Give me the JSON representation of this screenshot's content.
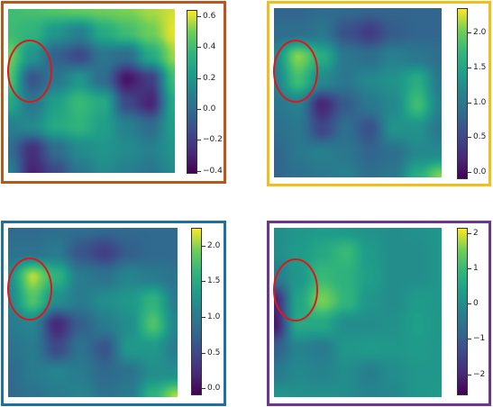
{
  "colors": {
    "panel_1_border": "#b8571d",
    "panel_2_border": "#f0bf1a",
    "panel_3_border": "#1f6fa0",
    "panel_4_border": "#6b3590",
    "circle": "#e0161b"
  },
  "chart_data": [
    {
      "type": "heatmap",
      "colormap": "viridis",
      "legend": "colorbar-right",
      "colorbar_range": [
        -0.42,
        0.64
      ],
      "colorbar_ticks": [
        "0.6",
        "0.4",
        "0.2",
        "0.0",
        "−0.2",
        "−0.4"
      ],
      "colorbar_tick_values": [
        0.6,
        0.4,
        0.2,
        0.0,
        -0.2,
        -0.4
      ],
      "grid": [
        [
          0.4,
          0.42,
          0.45,
          0.48,
          0.5,
          0.52,
          0.56,
          0.6
        ],
        [
          0.4,
          0.35,
          0.2,
          0.1,
          0.3,
          0.4,
          0.5,
          0.62
        ],
        [
          0.5,
          0.2,
          -0.05,
          -0.15,
          0.05,
          0.0,
          0.3,
          0.55
        ],
        [
          0.45,
          -0.1,
          0.05,
          0.2,
          0.0,
          -0.35,
          -0.2,
          0.4
        ],
        [
          0.3,
          0.05,
          0.25,
          0.38,
          0.3,
          -0.15,
          -0.3,
          0.3
        ],
        [
          0.1,
          0.15,
          0.3,
          0.35,
          0.25,
          0.1,
          0.0,
          0.25
        ],
        [
          0.0,
          -0.25,
          0.0,
          0.15,
          0.2,
          0.15,
          0.1,
          0.2
        ],
        [
          0.1,
          -0.3,
          -0.15,
          0.05,
          0.15,
          0.1,
          0.05,
          0.15
        ]
      ]
    },
    {
      "type": "heatmap",
      "colormap": "viridis",
      "legend": "colorbar-right",
      "colorbar_range": [
        -0.1,
        2.35
      ],
      "colorbar_ticks": [
        "2.0",
        "1.5",
        "1.0",
        "0.5",
        "0.0"
      ],
      "colorbar_tick_values": [
        2.0,
        1.5,
        1.0,
        0.5,
        0.0
      ],
      "grid": [
        [
          0.8,
          0.8,
          0.85,
          0.85,
          0.8,
          0.8,
          0.8,
          0.8
        ],
        [
          0.9,
          0.9,
          1.0,
          0.6,
          0.4,
          0.7,
          0.8,
          0.8
        ],
        [
          1.2,
          2.1,
          1.6,
          1.0,
          0.9,
          1.1,
          1.0,
          0.9
        ],
        [
          1.1,
          1.8,
          1.2,
          1.0,
          1.2,
          1.3,
          1.6,
          1.0
        ],
        [
          1.0,
          1.1,
          0.2,
          0.7,
          1.0,
          1.2,
          1.8,
          1.1
        ],
        [
          0.9,
          1.0,
          0.5,
          0.9,
          0.6,
          1.3,
          1.3,
          1.0
        ],
        [
          0.8,
          1.0,
          1.1,
          1.0,
          0.8,
          0.9,
          1.2,
          1.2
        ],
        [
          0.8,
          0.9,
          1.0,
          1.1,
          0.9,
          1.0,
          1.6,
          2.1
        ]
      ]
    },
    {
      "type": "heatmap",
      "colormap": "viridis",
      "legend": "colorbar-right",
      "colorbar_range": [
        -0.1,
        2.25
      ],
      "colorbar_ticks": [
        "2.0",
        "1.5",
        "1.0",
        "0.5",
        "0.0"
      ],
      "colorbar_tick_values": [
        2.0,
        1.5,
        1.0,
        0.5,
        0.0
      ],
      "grid": [
        [
          0.8,
          0.8,
          0.85,
          0.85,
          0.8,
          0.8,
          0.8,
          0.8
        ],
        [
          0.9,
          0.9,
          1.0,
          0.6,
          0.4,
          0.7,
          0.8,
          0.8
        ],
        [
          1.2,
          2.1,
          1.6,
          1.0,
          0.9,
          1.1,
          1.0,
          0.9
        ],
        [
          1.1,
          1.8,
          1.2,
          1.0,
          1.2,
          1.3,
          1.6,
          1.0
        ],
        [
          1.0,
          1.1,
          0.2,
          0.7,
          1.0,
          1.2,
          1.8,
          1.1
        ],
        [
          0.9,
          1.0,
          0.5,
          0.9,
          0.6,
          1.3,
          1.3,
          1.0
        ],
        [
          0.8,
          1.0,
          1.1,
          1.0,
          0.8,
          0.9,
          1.2,
          1.2
        ],
        [
          0.8,
          0.9,
          1.0,
          1.1,
          0.9,
          1.0,
          1.6,
          2.1
        ]
      ]
    },
    {
      "type": "heatmap",
      "colormap": "viridis",
      "legend": "colorbar-right",
      "colorbar_range": [
        -2.6,
        2.15
      ],
      "colorbar_ticks": [
        "2",
        "1",
        "0",
        "−1",
        "−2"
      ],
      "colorbar_tick_values": [
        2,
        1,
        0,
        -1,
        -2
      ],
      "grid": [
        [
          0.0,
          0.2,
          0.3,
          0.2,
          0.1,
          0.0,
          0.1,
          0.2
        ],
        [
          0.0,
          0.3,
          0.6,
          1.0,
          0.3,
          0.0,
          0.0,
          0.2
        ],
        [
          -0.4,
          0.2,
          1.0,
          0.8,
          0.4,
          0.0,
          0.0,
          0.2
        ],
        [
          -2.0,
          0.5,
          1.6,
          0.9,
          0.2,
          0.0,
          0.3,
          0.2
        ],
        [
          -2.2,
          0.6,
          0.6,
          0.0,
          0.0,
          0.1,
          0.4,
          0.2
        ],
        [
          -1.0,
          -0.2,
          -0.4,
          0.2,
          0.3,
          0.2,
          0.3,
          0.2
        ],
        [
          -0.4,
          -0.1,
          -0.2,
          0.0,
          -0.3,
          0.0,
          0.2,
          0.2
        ],
        [
          0.2,
          0.1,
          0.1,
          0.0,
          -0.2,
          -0.1,
          0.2,
          0.3
        ]
      ]
    }
  ]
}
